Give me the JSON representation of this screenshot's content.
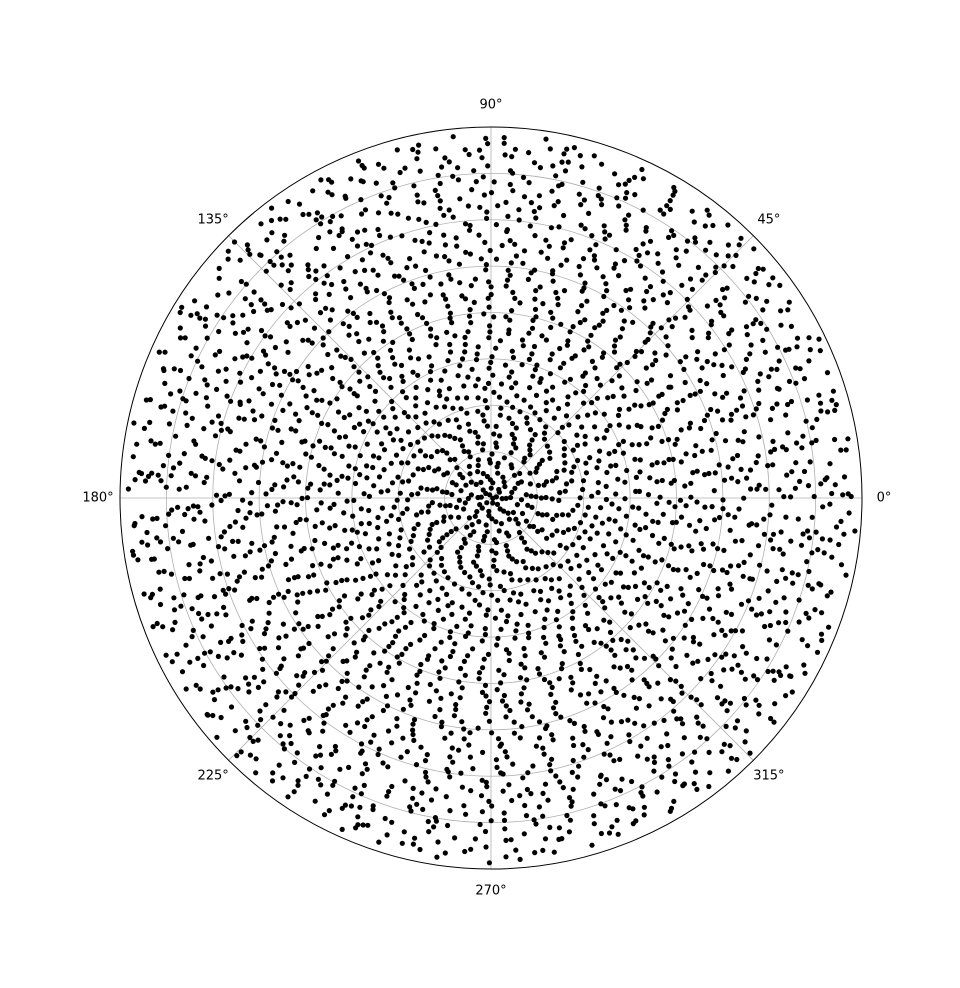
{
  "chart_data": {
    "type": "scatter",
    "coordinate_system": "polar",
    "title": "",
    "theta_tick_labels": [
      "0°",
      "45°",
      "90°",
      "135°",
      "180°",
      "225°",
      "270°",
      "315°"
    ],
    "theta_ticks_deg": [
      0,
      45,
      90,
      135,
      180,
      225,
      270,
      315
    ],
    "r_gridlines": [
      0.125,
      0.25,
      0.375,
      0.5,
      0.625,
      0.75,
      0.875
    ],
    "r_tick_labels_shown": false,
    "rlim": [
      0,
      1
    ],
    "grid": true,
    "legend": "none",
    "marker_color": "#000000",
    "grid_color": "#b0b0b0",
    "series": [
      {
        "description": "Points arranged on a logarithmic spiral lattice: dense, tightly wound arms at the centre, sparser toward the rim",
        "spiral_arms": 5,
        "approx_point_count": 3000
      }
    ]
  }
}
